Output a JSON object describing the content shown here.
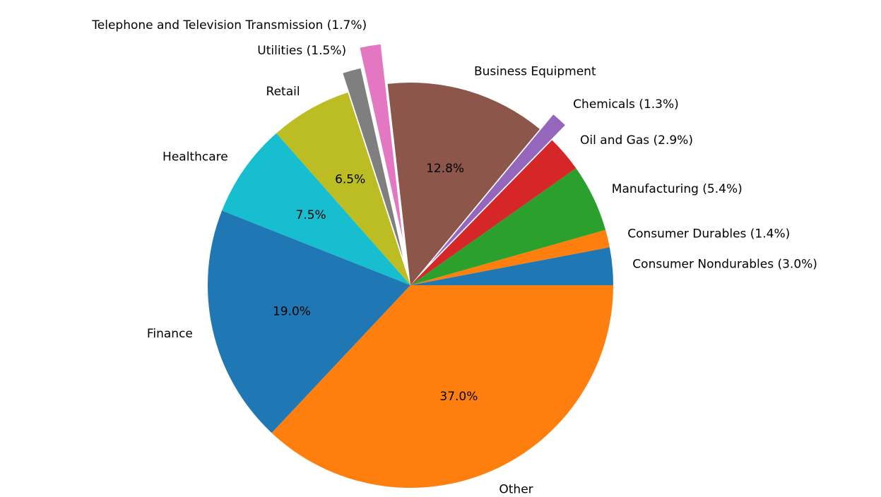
{
  "chart_data": {
    "type": "pie",
    "categories": [
      "Consumer Nondurables (3.0%)",
      "Consumer Durables (1.4%)",
      "Manufacturing (5.4%)",
      "Oil and Gas (2.9%)",
      "Chemicals (1.3%)",
      "Business Equipment",
      "Telephone and Television Transmission (1.7%)",
      "Utilities (1.5%)",
      "Retail",
      "Healthcare",
      "Finance",
      "Other"
    ],
    "values": [
      3.0,
      1.4,
      5.4,
      2.9,
      1.3,
      12.8,
      1.7,
      1.5,
      6.5,
      7.5,
      19.0,
      37.0
    ],
    "value_labels": [
      null,
      null,
      null,
      null,
      null,
      "12.8%",
      null,
      null,
      "6.5%",
      "7.5%",
      "19.0%",
      "37.0%"
    ],
    "colors": [
      "#1f77b4",
      "#ff7f0e",
      "#2ca02c",
      "#d62728",
      "#9467bd",
      "#8c564b",
      "#e377c2",
      "#7f7f7f",
      "#bcbd22",
      "#17becf",
      "#1f77b4",
      "#ff7f0e"
    ],
    "explode": [
      0,
      0,
      0,
      0,
      0.1,
      0,
      0.2,
      0.1,
      0,
      0,
      0,
      0
    ]
  }
}
